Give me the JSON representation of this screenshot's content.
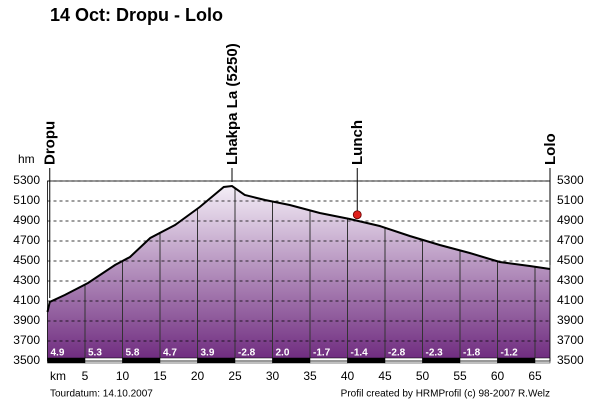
{
  "chart_data": {
    "type": "area",
    "title": "14 Oct: Dropu - Lolo",
    "x_label": "km",
    "y_label": "hm",
    "x": [
      0,
      0.3,
      2.3,
      5.4,
      9,
      11,
      13.7,
      17,
      20.3,
      23.5,
      24.6,
      26.3,
      29,
      32.3,
      36.3,
      40.3,
      44.3,
      48.3,
      52.3,
      56.3,
      60.3,
      64.3,
      67
    ],
    "values": [
      3990,
      4090,
      4160,
      4280,
      4460,
      4540,
      4730,
      4860,
      5040,
      5240,
      5250,
      5160,
      5110,
      5060,
      4980,
      4920,
      4850,
      4750,
      4660,
      4580,
      4490,
      4450,
      4420
    ],
    "color": "#000000",
    "fill_top": "#f4eef7",
    "fill_bottom": "#6e2a7e",
    "xlim": [
      0,
      67
    ],
    "ylim": [
      3500,
      5300
    ],
    "xticks": [
      5,
      10,
      15,
      20,
      25,
      30,
      35,
      40,
      45,
      50,
      55,
      60,
      65
    ],
    "yticks": [
      3500,
      3700,
      3900,
      4100,
      4300,
      4500,
      4700,
      4900,
      5100,
      5300
    ],
    "grid": true,
    "waypoints": [
      {
        "label": "Dropu",
        "x": 0.3
      },
      {
        "label": "Lhakpa La (5250)",
        "x": 24.6
      },
      {
        "label": "Lunch",
        "x": 41.3,
        "marker_color": "#e0201c"
      },
      {
        "label": "Lolo",
        "x": 67
      }
    ],
    "gradients": {
      "values": [
        4.9,
        5.3,
        5.8,
        4.7,
        3.9,
        -2.8,
        2.0,
        -1.7,
        -1.4,
        -2.8,
        -2.3,
        -1.8,
        -1.2
      ],
      "value_labels": [
        "4.9",
        "5.3",
        "5.8",
        "4.7",
        "3.9",
        "-2.8",
        "2.0",
        "-1.7",
        "-1.4",
        "-2.8",
        "-2.3",
        "-1.8",
        "-1.2"
      ]
    },
    "footer_left": "Tourdatum: 14.10.2007",
    "footer_right": "Profil created by HRMProfil (c) 98-2007 R.Welz"
  }
}
